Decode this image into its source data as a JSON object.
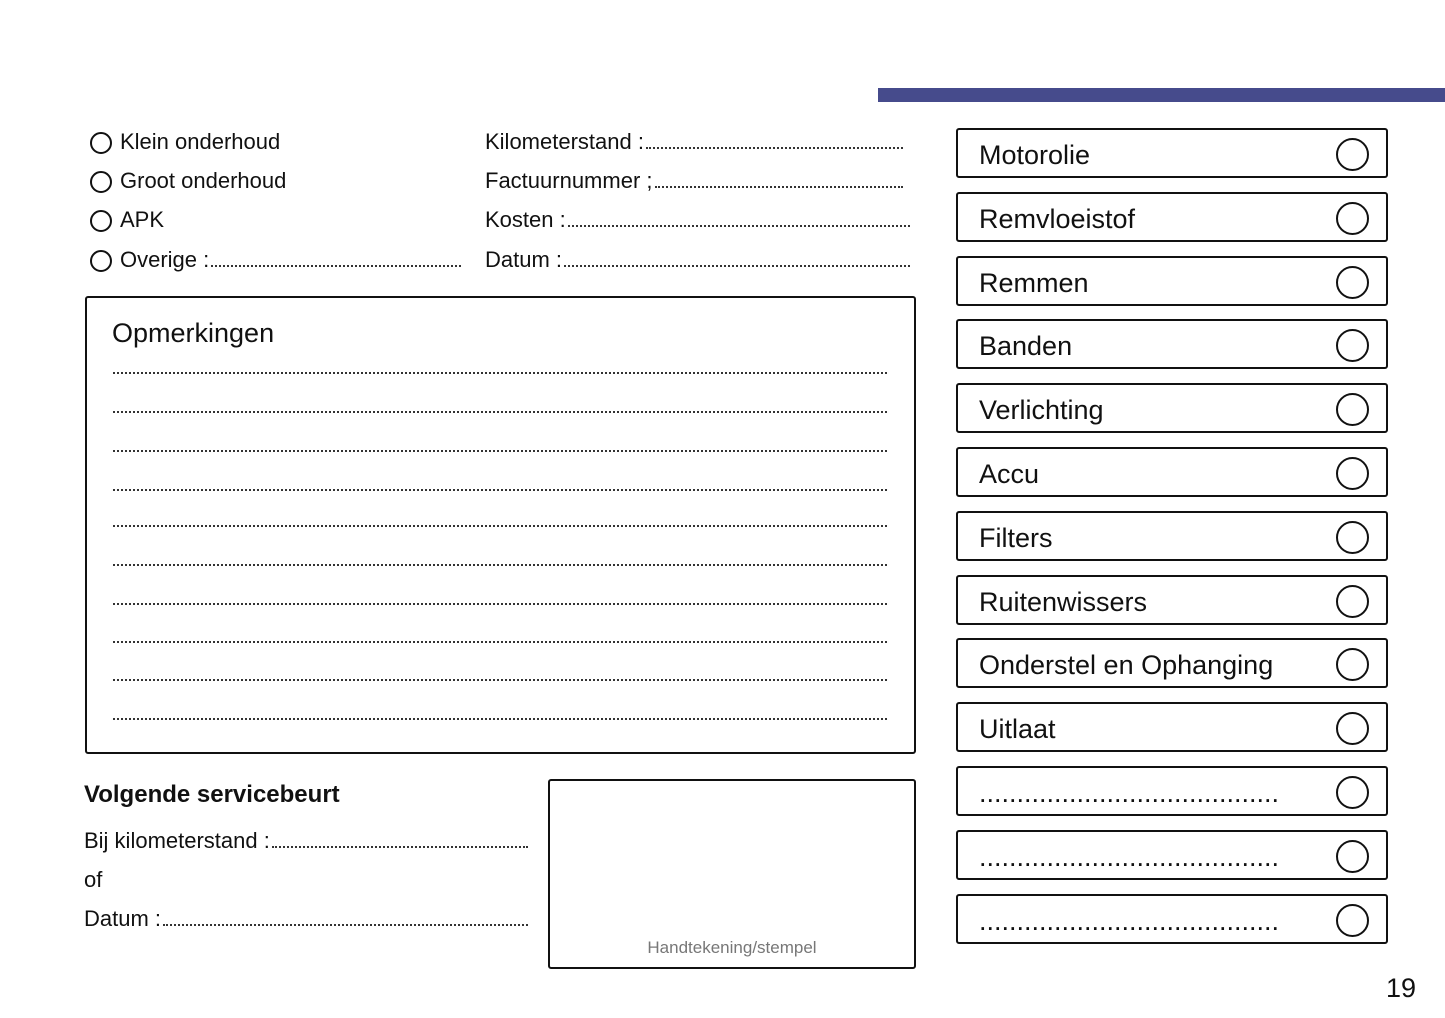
{
  "accent_color": "#464b8c",
  "service_types": [
    {
      "label": "Klein onderhoud"
    },
    {
      "label": "Groot onderhoud"
    },
    {
      "label": "APK"
    },
    {
      "label": "Overige :"
    }
  ],
  "info_fields": [
    {
      "label": "Kilometerstand :"
    },
    {
      "label": "Factuurnummer ;"
    },
    {
      "label": "Kosten :"
    },
    {
      "label": "Datum :"
    }
  ],
  "remarks": {
    "title": "Opmerkingen",
    "line_count": 10
  },
  "next_service": {
    "title": "Volgende servicebeurt",
    "km_label": "Bij kilometerstand :",
    "or_label": "of",
    "date_label": "Datum :"
  },
  "signature": {
    "label": "Handtekening/stempel"
  },
  "checklist": [
    "Motorolie",
    "Remvloeistof",
    "Remmen",
    "Banden",
    "Verlichting",
    "Accu",
    "Filters",
    "Ruitenwissers",
    "Onderstel en Ophanging",
    "Uitlaat",
    "........................................",
    "........................................",
    "........................................"
  ],
  "page_number": "19"
}
